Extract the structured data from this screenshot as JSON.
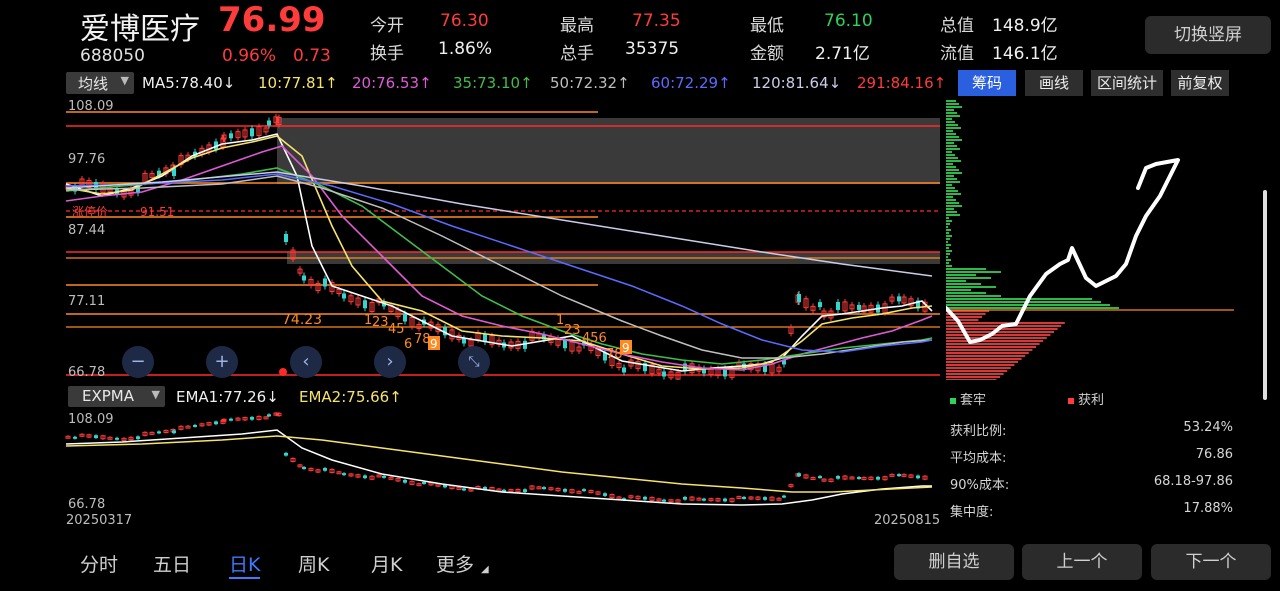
{
  "stock": {
    "name": "爱博医疗",
    "price": "76.99",
    "code": "688050",
    "change_pct": "0.96%",
    "change_amt": "0.73"
  },
  "switch_button": "切换竖屏",
  "quote": {
    "open_label": "今开",
    "open": "76.30",
    "high_label": "最高",
    "high": "77.35",
    "low_label": "最低",
    "low": "76.10",
    "mcap_label": "总值",
    "mcap": "148.9亿",
    "turnover_label": "换手",
    "turnover": "1.86%",
    "volume_label": "总手",
    "volume": "35375",
    "amount_label": "金额",
    "amount": "2.71亿",
    "float_label": "流值",
    "float": "146.1亿"
  },
  "ma_bar": {
    "selector": "均线",
    "ma5": "MA5:78.40↓",
    "ma10": "10:77.81↑",
    "ma20": "20:76.53↑",
    "ma35": "35:73.10↑",
    "ma50": "50:72.32↑",
    "ma60": "60:72.29↑",
    "ma120": "120:81.64↓",
    "ma291": "291:84.16↑"
  },
  "tools": {
    "chips": "筹码",
    "draw": "画线",
    "range": "区间统计",
    "adjust": "前复权"
  },
  "main_chart": {
    "y_top": "108.09",
    "y_1": "97.76",
    "y_2": "87.44",
    "y_3": "77.11",
    "y_bottom": "66.78",
    "limit_label": "涨停价",
    "limit_value": "91.51",
    "ann_74": "74.23",
    "seq_a": "1",
    "seq_a2": "23",
    "seq_a3": "45",
    "seq_a4": "6",
    "seq_a5": "78",
    "seq_a6": "9",
    "seq_b": "1",
    "seq_b2": "23",
    "seq_b3": "456",
    "seq_b4": "78",
    "seq_b5": "9"
  },
  "lower": {
    "selector": "EXPMA",
    "ema1": "EMA1:77.26↓",
    "ema2": "EMA2:75.66↑",
    "y_top": "108.09",
    "y_bottom": "66.78",
    "date_start": "20250317",
    "date_end": "20250815"
  },
  "chips_panel": {
    "legend_trapped": "套牢",
    "legend_profit": "获利",
    "rows": [
      {
        "k": "获利比例:",
        "v": "53.24%"
      },
      {
        "k": "平均成本:",
        "v": "76.86"
      },
      {
        "k": "90%成本:",
        "v": "68.18-97.86"
      },
      {
        "k": "集中度:",
        "v": "17.88%"
      }
    ]
  },
  "bottom_tabs": {
    "fenshi": "分时",
    "wuri": "五日",
    "rik": "日K",
    "zhouk": "周K",
    "yuek": "月K",
    "more": "更多"
  },
  "bottom_buttons": {
    "remove": "删自选",
    "prev": "上一个",
    "next": "下一个"
  },
  "colors": {
    "up": "#ff3b3b",
    "down": "#2fd15a",
    "accent": "#2a5fe0"
  }
}
